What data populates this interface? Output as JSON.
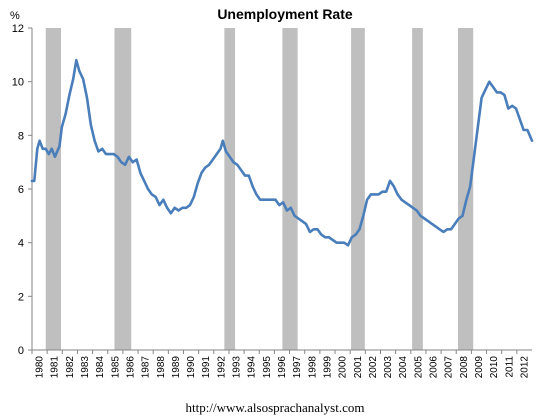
{
  "chart_data": {
    "type": "line",
    "title": "Unemployment Rate",
    "ylabel": "%",
    "ylim": [
      0,
      12
    ],
    "yticks": [
      "0",
      "2",
      "4",
      "6",
      "8",
      "10",
      "12"
    ],
    "xticks": [
      "1980",
      "1981",
      "1982",
      "1983",
      "1984",
      "1985",
      "1986",
      "1987",
      "1988",
      "1989",
      "1990",
      "1991",
      "1992",
      "1993",
      "1994",
      "1995",
      "1996",
      "1997",
      "1998",
      "1999",
      "2000",
      "2001",
      "2002",
      "2003",
      "2004",
      "2005",
      "2006",
      "2007",
      "2008",
      "2009",
      "2010",
      "2011",
      "2012"
    ],
    "x_range": [
      1980.0,
      2012.75
    ],
    "grid": false,
    "legend": "none",
    "shaded_periods": [
      [
        1980.9,
        1981.9
      ],
      [
        1985.4,
        1986.5
      ],
      [
        1992.6,
        1993.3
      ],
      [
        1996.4,
        1997.4
      ],
      [
        2000.9,
        2001.8
      ],
      [
        2004.9,
        2005.6
      ],
      [
        2007.9,
        2008.9
      ]
    ],
    "series": [
      {
        "values": [
          [
            1980.0,
            6.3
          ],
          [
            1980.15,
            6.3
          ],
          [
            1980.35,
            7.5
          ],
          [
            1980.5,
            7.8
          ],
          [
            1980.7,
            7.5
          ],
          [
            1980.9,
            7.5
          ],
          [
            1981.1,
            7.3
          ],
          [
            1981.3,
            7.5
          ],
          [
            1981.5,
            7.2
          ],
          [
            1981.8,
            7.6
          ],
          [
            1981.95,
            8.3
          ],
          [
            1982.2,
            8.8
          ],
          [
            1982.45,
            9.5
          ],
          [
            1982.7,
            10.1
          ],
          [
            1982.9,
            10.8
          ],
          [
            1983.1,
            10.4
          ],
          [
            1983.35,
            10.1
          ],
          [
            1983.6,
            9.4
          ],
          [
            1983.85,
            8.4
          ],
          [
            1984.1,
            7.8
          ],
          [
            1984.35,
            7.4
          ],
          [
            1984.6,
            7.5
          ],
          [
            1984.85,
            7.3
          ],
          [
            1985.1,
            7.3
          ],
          [
            1985.35,
            7.3
          ],
          [
            1985.6,
            7.2
          ],
          [
            1985.85,
            7.0
          ],
          [
            1986.1,
            6.9
          ],
          [
            1986.35,
            7.2
          ],
          [
            1986.6,
            7.0
          ],
          [
            1986.85,
            7.1
          ],
          [
            1987.1,
            6.6
          ],
          [
            1987.35,
            6.3
          ],
          [
            1987.6,
            6.0
          ],
          [
            1987.85,
            5.8
          ],
          [
            1988.1,
            5.7
          ],
          [
            1988.35,
            5.4
          ],
          [
            1988.6,
            5.6
          ],
          [
            1988.85,
            5.3
          ],
          [
            1989.1,
            5.1
          ],
          [
            1989.35,
            5.3
          ],
          [
            1989.6,
            5.2
          ],
          [
            1989.85,
            5.3
          ],
          [
            1990.1,
            5.3
          ],
          [
            1990.35,
            5.4
          ],
          [
            1990.6,
            5.7
          ],
          [
            1990.85,
            6.2
          ],
          [
            1991.1,
            6.6
          ],
          [
            1991.35,
            6.8
          ],
          [
            1991.6,
            6.9
          ],
          [
            1991.85,
            7.1
          ],
          [
            1992.1,
            7.3
          ],
          [
            1992.35,
            7.5
          ],
          [
            1992.5,
            7.8
          ],
          [
            1992.7,
            7.4
          ],
          [
            1992.95,
            7.2
          ],
          [
            1993.2,
            7.0
          ],
          [
            1993.45,
            6.9
          ],
          [
            1993.7,
            6.7
          ],
          [
            1993.95,
            6.5
          ],
          [
            1994.2,
            6.5
          ],
          [
            1994.45,
            6.1
          ],
          [
            1994.7,
            5.8
          ],
          [
            1994.95,
            5.6
          ],
          [
            1995.2,
            5.6
          ],
          [
            1995.45,
            5.6
          ],
          [
            1995.7,
            5.6
          ],
          [
            1995.95,
            5.6
          ],
          [
            1996.2,
            5.4
          ],
          [
            1996.45,
            5.5
          ],
          [
            1996.7,
            5.2
          ],
          [
            1996.95,
            5.3
          ],
          [
            1997.2,
            5.0
          ],
          [
            1997.45,
            4.9
          ],
          [
            1997.7,
            4.8
          ],
          [
            1997.95,
            4.7
          ],
          [
            1998.2,
            4.4
          ],
          [
            1998.45,
            4.5
          ],
          [
            1998.7,
            4.5
          ],
          [
            1998.95,
            4.3
          ],
          [
            1999.2,
            4.2
          ],
          [
            1999.45,
            4.2
          ],
          [
            1999.7,
            4.1
          ],
          [
            1999.95,
            4.0
          ],
          [
            2000.2,
            4.0
          ],
          [
            2000.45,
            4.0
          ],
          [
            2000.7,
            3.9
          ],
          [
            2000.95,
            4.2
          ],
          [
            2001.2,
            4.3
          ],
          [
            2001.45,
            4.5
          ],
          [
            2001.7,
            5.0
          ],
          [
            2001.95,
            5.6
          ],
          [
            2002.2,
            5.8
          ],
          [
            2002.45,
            5.8
          ],
          [
            2002.7,
            5.8
          ],
          [
            2002.95,
            5.9
          ],
          [
            2003.2,
            5.9
          ],
          [
            2003.45,
            6.3
          ],
          [
            2003.7,
            6.1
          ],
          [
            2003.95,
            5.8
          ],
          [
            2004.2,
            5.6
          ],
          [
            2004.45,
            5.5
          ],
          [
            2004.7,
            5.4
          ],
          [
            2004.95,
            5.3
          ],
          [
            2005.2,
            5.2
          ],
          [
            2005.45,
            5.0
          ],
          [
            2005.7,
            4.9
          ],
          [
            2005.95,
            4.8
          ],
          [
            2006.2,
            4.7
          ],
          [
            2006.45,
            4.6
          ],
          [
            2006.7,
            4.5
          ],
          [
            2006.95,
            4.4
          ],
          [
            2007.2,
            4.5
          ],
          [
            2007.45,
            4.5
          ],
          [
            2007.7,
            4.7
          ],
          [
            2007.95,
            4.9
          ],
          [
            2008.2,
            5.0
          ],
          [
            2008.45,
            5.6
          ],
          [
            2008.7,
            6.1
          ],
          [
            2008.95,
            7.2
          ],
          [
            2009.2,
            8.3
          ],
          [
            2009.45,
            9.4
          ],
          [
            2009.7,
            9.7
          ],
          [
            2009.95,
            10.0
          ],
          [
            2010.2,
            9.8
          ],
          [
            2010.45,
            9.6
          ],
          [
            2010.7,
            9.6
          ],
          [
            2010.95,
            9.5
          ],
          [
            2011.2,
            9.0
          ],
          [
            2011.45,
            9.1
          ],
          [
            2011.7,
            9.0
          ],
          [
            2011.95,
            8.6
          ],
          [
            2012.2,
            8.2
          ],
          [
            2012.45,
            8.2
          ],
          [
            2012.6,
            8.0
          ],
          [
            2012.75,
            7.8
          ]
        ]
      }
    ],
    "colors": {
      "line": "#4a7ebb",
      "shade": "#bfbfbf",
      "axis": "#868686"
    }
  },
  "footer": {
    "url": "http://www.alsosprachanalyst.com"
  }
}
